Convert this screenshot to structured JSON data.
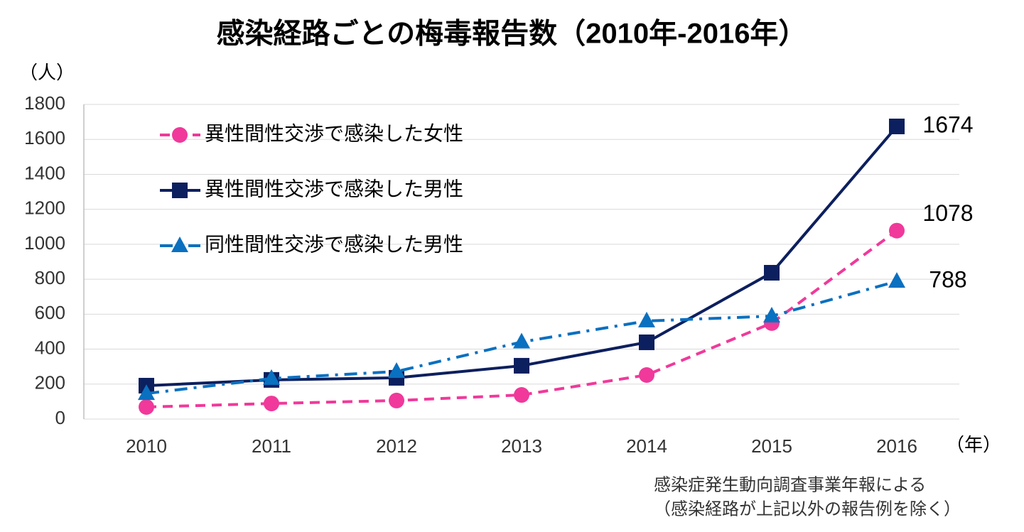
{
  "chart_data": {
    "type": "line",
    "title": "感染経路ごとの梅毒報告数（2010年-2016年）",
    "y_unit": "（人）",
    "x_unit": "（年）",
    "notes": [
      "感染症発生動向調査事業年報による",
      "（感染経路が上記以外の報告例を除く）"
    ],
    "categories": [
      "2010",
      "2011",
      "2012",
      "2013",
      "2014",
      "2015",
      "2016"
    ],
    "series": [
      {
        "name": "異性間性交渉で感染した女性",
        "color": "#f0399a",
        "marker": "circle",
        "dash": "dashed",
        "values": [
          69,
          89,
          106,
          138,
          252,
          549,
          1078
        ]
      },
      {
        "name": "異性間性交渉で感染した男性",
        "color": "#0c1f5e",
        "marker": "square",
        "dash": "solid",
        "values": [
          191,
          224,
          236,
          305,
          439,
          837,
          1674
        ]
      },
      {
        "name": "同性間性交渉で感染した男性",
        "color": "#0a70c0",
        "marker": "triangle",
        "dash": "dashdot",
        "values": [
          146,
          232,
          272,
          441,
          561,
          589,
          788
        ]
      }
    ],
    "ylim": [
      0,
      1800
    ],
    "yticks": [
      0,
      200,
      400,
      600,
      800,
      1000,
      1200,
      1400,
      1600,
      1800
    ],
    "grid": true,
    "legend": "upper-left"
  }
}
